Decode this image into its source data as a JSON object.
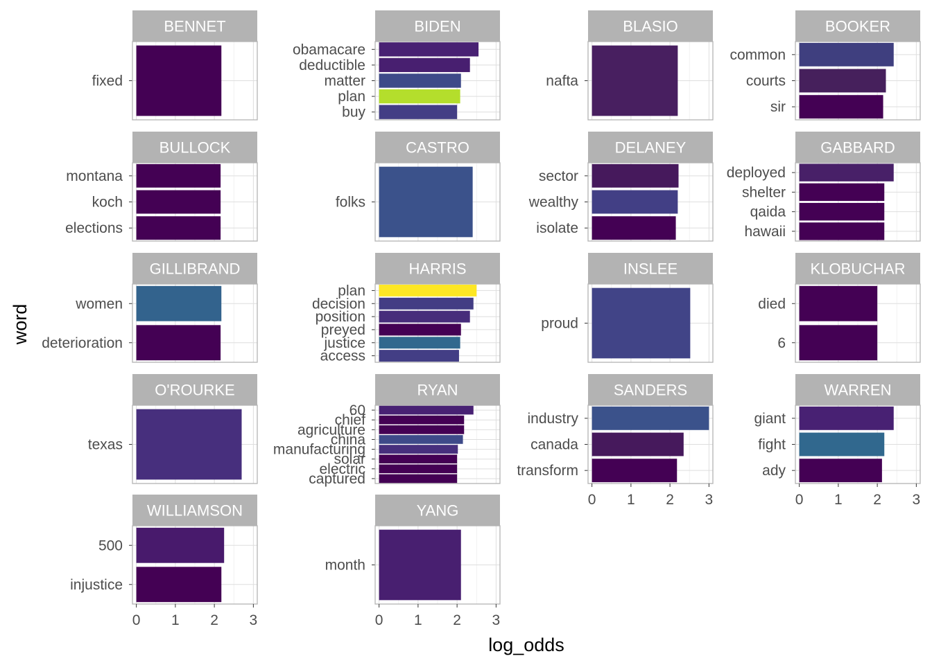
{
  "chart_data": {
    "type": "bar",
    "orientation": "horizontal",
    "layout": "facet_wrap",
    "xlabel": "log_odds",
    "ylabel": "word",
    "xlim": [
      -0.1,
      3.1
    ],
    "xticks": [
      0,
      1,
      2,
      3
    ],
    "grid": true,
    "colors": [
      "#440154",
      "#482777",
      "#3e4a89",
      "#31688e",
      "#26828e",
      "#1f9e89",
      "#35b779",
      "#6dcd59",
      "#b4de2c",
      "#fde725"
    ],
    "facets": [
      {
        "name": "BENNET",
        "words": [
          "fixed"
        ],
        "values": [
          2.18
        ],
        "colors": [
          "#440154"
        ]
      },
      {
        "name": "BIDEN",
        "words": [
          "obamacare",
          "deductible",
          "matter",
          "plan",
          "buy"
        ],
        "values": [
          2.55,
          2.33,
          2.1,
          2.08,
          2.0
        ],
        "colors": [
          "#482173",
          "#481f70",
          "#3e4a89",
          "#b4de2c",
          "#433e85"
        ]
      },
      {
        "name": "BLASIO",
        "words": [
          "nafta"
        ],
        "values": [
          2.2
        ],
        "colors": [
          "#481f60"
        ]
      },
      {
        "name": "BOOKER",
        "words": [
          "common",
          "courts",
          "sir"
        ],
        "values": [
          2.42,
          2.22,
          2.15
        ],
        "colors": [
          "#3f3f7f",
          "#46205c",
          "#440154"
        ]
      },
      {
        "name": "BULLOCK",
        "words": [
          "montana",
          "koch",
          "elections"
        ],
        "values": [
          2.16,
          2.16,
          2.16
        ],
        "colors": [
          "#440154",
          "#440154",
          "#440154"
        ]
      },
      {
        "name": "CASTRO",
        "words": [
          "folks"
        ],
        "values": [
          2.4
        ],
        "colors": [
          "#3b528b"
        ]
      },
      {
        "name": "DELANEY",
        "words": [
          "sector",
          "wealthy",
          "isolate"
        ],
        "values": [
          2.22,
          2.2,
          2.15
        ],
        "colors": [
          "#46195c",
          "#423f85",
          "#440154"
        ]
      },
      {
        "name": "GABBARD",
        "words": [
          "deployed",
          "shelter",
          "qaida",
          "hawaii"
        ],
        "values": [
          2.42,
          2.18,
          2.18,
          2.18
        ],
        "colors": [
          "#482068",
          "#440154",
          "#440154",
          "#440154"
        ]
      },
      {
        "name": "GILLIBRAND",
        "words": [
          "women",
          "deterioration"
        ],
        "values": [
          2.18,
          2.16
        ],
        "colors": [
          "#33638d",
          "#440154"
        ]
      },
      {
        "name": "HARRIS",
        "words": [
          "plan",
          "decision",
          "position",
          "preyed",
          "justice",
          "access"
        ],
        "values": [
          2.5,
          2.42,
          2.33,
          2.1,
          2.08,
          2.05
        ],
        "colors": [
          "#fde725",
          "#433d84",
          "#472d7b",
          "#440154",
          "#31688e",
          "#433e85"
        ]
      },
      {
        "name": "INSLEE",
        "words": [
          "proud"
        ],
        "values": [
          2.52
        ],
        "colors": [
          "#414487"
        ]
      },
      {
        "name": "KLOBUCHAR",
        "words": [
          "died",
          "6"
        ],
        "values": [
          2.0,
          2.0
        ],
        "colors": [
          "#440154",
          "#440154"
        ]
      },
      {
        "name": "O'ROURKE",
        "words": [
          "texas"
        ],
        "values": [
          2.7
        ],
        "colors": [
          "#472f7d"
        ]
      },
      {
        "name": "RYAN",
        "words": [
          "60",
          "chief",
          "agriculture",
          "china",
          "manufacturing",
          "solar",
          "electric",
          "captured"
        ],
        "values": [
          2.42,
          2.18,
          2.18,
          2.15,
          2.02,
          2.0,
          2.0,
          2.0
        ],
        "colors": [
          "#482173",
          "#440154",
          "#440154",
          "#3e4a89",
          "#472f7d",
          "#440154",
          "#440154",
          "#440154"
        ]
      },
      {
        "name": "SANDERS",
        "words": [
          "industry",
          "canada",
          "transform"
        ],
        "values": [
          3.0,
          2.35,
          2.18
        ],
        "colors": [
          "#3b528b",
          "#46195c",
          "#440154"
        ]
      },
      {
        "name": "WARREN",
        "words": [
          "giant",
          "fight",
          "ady"
        ],
        "values": [
          2.42,
          2.18,
          2.12
        ],
        "colors": [
          "#482173",
          "#31688e",
          "#440154"
        ]
      },
      {
        "name": "WILLIAMSON",
        "words": [
          "500",
          "injustice"
        ],
        "values": [
          2.25,
          2.18
        ],
        "colors": [
          "#481a6c",
          "#440154"
        ]
      },
      {
        "name": "YANG",
        "words": [
          "month"
        ],
        "values": [
          2.1
        ],
        "colors": [
          "#481f70"
        ]
      }
    ]
  }
}
